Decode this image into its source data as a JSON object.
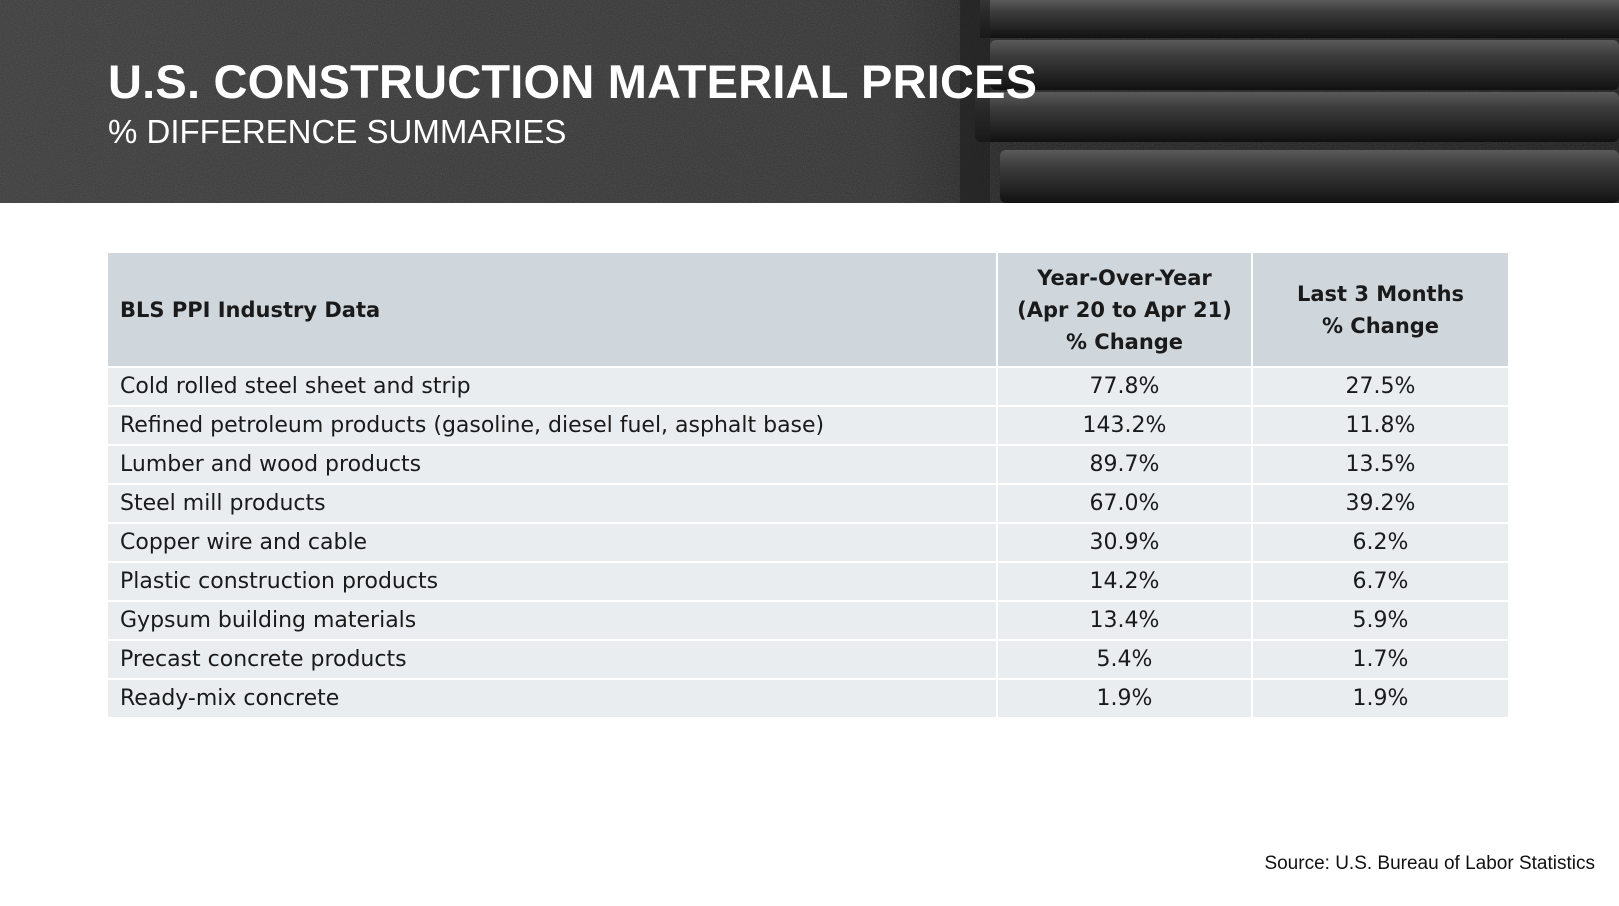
{
  "header": {
    "title": "U.S. CONSTRUCTION MATERIAL PRICES",
    "subtitle": "% DIFFERENCE SUMMARIES"
  },
  "table": {
    "headers": {
      "col1": "BLS PPI Industry Data",
      "col2": [
        "Year-Over-Year",
        "(Apr 20 to Apr 21)",
        "% Change"
      ],
      "col3": [
        "Last 3 Months",
        "% Change"
      ]
    },
    "rows": [
      {
        "item": "Cold rolled steel sheet and strip",
        "yoy": "77.8%",
        "last3": "27.5%"
      },
      {
        "item": "Refined petroleum products (gasoline, diesel fuel, asphalt base)",
        "yoy": "143.2%",
        "last3": "11.8%"
      },
      {
        "item": "Lumber and wood products",
        "yoy": "89.7%",
        "last3": "13.5%"
      },
      {
        "item": "Steel mill products",
        "yoy": "67.0%",
        "last3": "39.2%"
      },
      {
        "item": "Copper wire and cable",
        "yoy": "30.9%",
        "last3": "6.2%"
      },
      {
        "item": "Plastic construction products",
        "yoy": "14.2%",
        "last3": "6.7%"
      },
      {
        "item": "Gypsum building materials",
        "yoy": "13.4%",
        "last3": "5.9%"
      },
      {
        "item": "Precast concrete products",
        "yoy": "5.4%",
        "last3": "1.7%"
      },
      {
        "item": "Ready-mix concrete",
        "yoy": "1.9%",
        "last3": "1.9%"
      }
    ]
  },
  "footer": {
    "source": "Source: U.S. Bureau of Labor Statistics"
  },
  "colors": {
    "header_row": "#cfd7dd",
    "body_row": "#e9edf0",
    "banner": "#2e2e2e"
  }
}
